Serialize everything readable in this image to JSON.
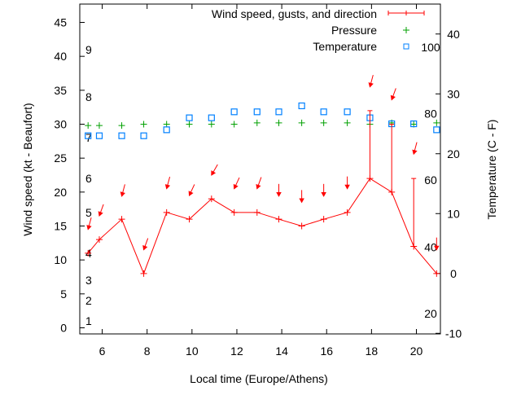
{
  "chart_data": {
    "type": "line",
    "xlabel": "Local time (Europe/Athens)",
    "ylabel": "Wind speed (kt - Beaufort)",
    "y2label": "Temperature (C - F)",
    "xlim": [
      5,
      21.07
    ],
    "ylim": [
      -0.9,
      47.7
    ],
    "y2lim": [
      -10.1,
      45
    ],
    "x_ticks": [
      6,
      8,
      10,
      12,
      14,
      16,
      18,
      20
    ],
    "y_ticks": [
      0,
      5,
      10,
      15,
      20,
      25,
      30,
      35,
      40,
      45
    ],
    "y2_ticks": [
      -10,
      0,
      10,
      20,
      30,
      40
    ],
    "beaufort_labels": [
      {
        "label": "1",
        "kt": 1
      },
      {
        "label": "2",
        "kt": 4
      },
      {
        "label": "3",
        "kt": 7
      },
      {
        "label": "4",
        "kt": 11
      },
      {
        "label": "5",
        "kt": 17
      },
      {
        "label": "6",
        "kt": 22
      },
      {
        "label": "7",
        "kt": 28
      },
      {
        "label": "8",
        "kt": 34
      },
      {
        "label": "9",
        "kt": 41
      }
    ],
    "fahrenheit_labels": [
      {
        "label": "20",
        "c": -6.7
      },
      {
        "label": "40",
        "c": 4.4
      },
      {
        "label": "60",
        "c": 15.6
      },
      {
        "label": "80",
        "c": 26.7
      },
      {
        "label": "100",
        "c": 37.8
      }
    ],
    "legend": {
      "placement": "top-right",
      "entries": [
        {
          "label": "Wind speed, gusts, and direction",
          "color": "#ff0000"
        },
        {
          "label": "Pressure",
          "color": "#00a000"
        },
        {
          "label": "Temperature",
          "color": "#0080ff"
        }
      ]
    },
    "x": [
      5.37,
      5.87,
      6.87,
      7.85,
      8.87,
      9.88,
      10.87,
      11.88,
      12.9,
      13.87,
      14.89,
      15.87,
      16.92,
      17.93,
      18.9,
      19.88,
      20.9
    ],
    "series": [
      {
        "name": "Wind speed",
        "axis": "y",
        "values": [
          11,
          13,
          16,
          8,
          17,
          16,
          19,
          17,
          17,
          16,
          15,
          16,
          17,
          22,
          20,
          12,
          8
        ]
      },
      {
        "name": "Gusts",
        "axis": "y",
        "values": [
          null,
          null,
          null,
          null,
          null,
          null,
          null,
          null,
          null,
          null,
          null,
          null,
          null,
          32,
          30,
          22,
          null
        ]
      },
      {
        "name": "Direction arrow position",
        "axis": "y",
        "values": [
          14.5,
          16.5,
          19.4,
          11.5,
          20.5,
          19.5,
          22.5,
          20.5,
          20.5,
          19.4,
          18.5,
          19.4,
          20.5,
          35.5,
          33.6,
          25.6,
          11.5
        ]
      },
      {
        "name": "Wind direction (deg from)",
        "values": [
          15,
          20,
          15,
          20,
          15,
          25,
          30,
          25,
          20,
          0,
          0,
          0,
          0,
          15,
          20,
          15,
          0
        ]
      },
      {
        "name": "Pressure",
        "axis": "y",
        "values": [
          29.8,
          29.8,
          29.8,
          30.0,
          30.0,
          30.0,
          30.0,
          30.0,
          30.2,
          30.2,
          30.2,
          30.2,
          30.2,
          30.0,
          30.2,
          30.0,
          30.2
        ]
      },
      {
        "name": "Temperature",
        "axis": "y2",
        "values": [
          23,
          23,
          23,
          23,
          24,
          26,
          26,
          27,
          27,
          27,
          28,
          27,
          27,
          26,
          25,
          25,
          24
        ]
      }
    ]
  }
}
